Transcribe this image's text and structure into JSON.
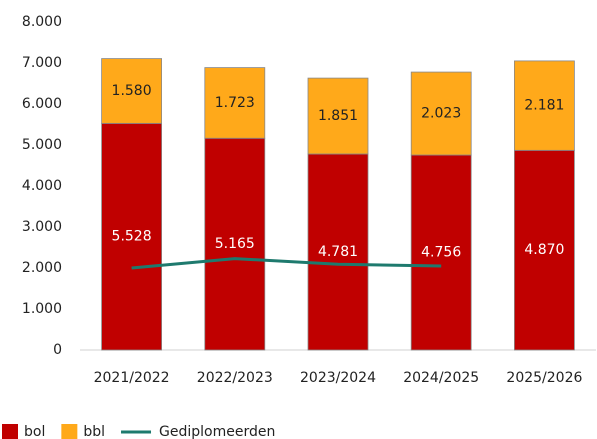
{
  "chart_data": {
    "type": "stacked-bar-line",
    "categories": [
      "2021/2022",
      "2022/2023",
      "2023/2024",
      "2024/2025",
      "2025/2026"
    ],
    "series": [
      {
        "name": "bol",
        "color": "#c00000",
        "values": [
          5528,
          5165,
          4781,
          4756,
          4870
        ],
        "value_labels": [
          "5.528",
          "5.165",
          "4.781",
          "4.756",
          "4.870"
        ]
      },
      {
        "name": "bbl",
        "color": "#ffa91a",
        "values": [
          1580,
          1723,
          1851,
          2023,
          2181
        ],
        "value_labels": [
          "1.580",
          "1.723",
          "1.851",
          "2.023",
          "2.181"
        ]
      },
      {
        "name": "Gediplomeerden",
        "color": "#1e7a6e",
        "type": "line",
        "values": [
          2000,
          2230,
          2090,
          2050,
          null
        ]
      }
    ],
    "ylim": [
      0,
      8000
    ],
    "yticks": [
      {
        "value": 0,
        "label": "0"
      },
      {
        "value": 1000,
        "label": "1.000"
      },
      {
        "value": 2000,
        "label": "2.000"
      },
      {
        "value": 3000,
        "label": "3.000"
      },
      {
        "value": 4000,
        "label": "4.000"
      },
      {
        "value": 5000,
        "label": "5.000"
      },
      {
        "value": 6000,
        "label": "6.000"
      },
      {
        "value": 7000,
        "label": "7.000"
      },
      {
        "value": 8000,
        "label": "8.000"
      }
    ],
    "legend": "bottom-left"
  }
}
